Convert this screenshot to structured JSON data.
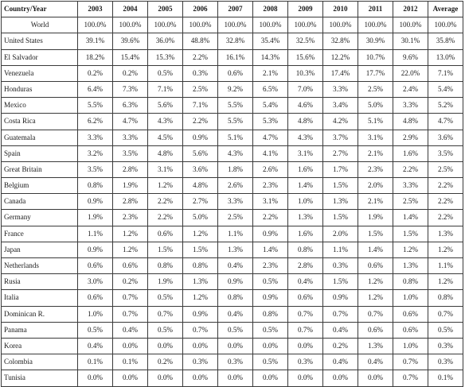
{
  "table": {
    "headers": [
      "Country/Year",
      "2003",
      "2004",
      "2005",
      "2006",
      "2007",
      "2008",
      "2009",
      "2010",
      "2011",
      "2012",
      "Average"
    ],
    "rows": [
      {
        "country": "World",
        "values": [
          "100.0%",
          "100.0%",
          "100.0%",
          "100.0%",
          "100.0%",
          "100.0%",
          "100.0%",
          "100.0%",
          "100.0%",
          "100.0%",
          "100.0%"
        ]
      },
      {
        "country": "United States",
        "values": [
          "39.1%",
          "39.6%",
          "36.0%",
          "48.8%",
          "32.8%",
          "35.4%",
          "32.5%",
          "32.8%",
          "30.9%",
          "30.1%",
          "35.8%"
        ]
      },
      {
        "country": "El Salvador",
        "values": [
          "18.2%",
          "15.4%",
          "15.3%",
          "2.2%",
          "16.1%",
          "14.3%",
          "15.6%",
          "12.2%",
          "10.7%",
          "9.6%",
          "13.0%"
        ]
      },
      {
        "country": "Venezuela",
        "values": [
          "0.2%",
          "0.2%",
          "0.5%",
          "0.3%",
          "0.6%",
          "2.1%",
          "10.3%",
          "17.4%",
          "17.7%",
          "22.0%",
          "7.1%"
        ]
      },
      {
        "country": "Honduras",
        "values": [
          "6.4%",
          "7.3%",
          "7.1%",
          "2.5%",
          "9.2%",
          "6.5%",
          "7.0%",
          "3.3%",
          "2.5%",
          "2.4%",
          "5.4%"
        ]
      },
      {
        "country": "Mexico",
        "values": [
          "5.5%",
          "6.3%",
          "5.6%",
          "7.1%",
          "5.5%",
          "5.4%",
          "4.6%",
          "3.4%",
          "5.0%",
          "3.3%",
          "5.2%"
        ]
      },
      {
        "country": "Costa Rica",
        "values": [
          "6.2%",
          "4.7%",
          "4.3%",
          "2.2%",
          "5.5%",
          "5.3%",
          "4.8%",
          "4.2%",
          "5.1%",
          "4.8%",
          "4.7%"
        ]
      },
      {
        "country": "Guatemala",
        "values": [
          "3.3%",
          "3.3%",
          "4.5%",
          "0.9%",
          "5.1%",
          "4.7%",
          "4.3%",
          "3.7%",
          "3.1%",
          "2.9%",
          "3.6%"
        ]
      },
      {
        "country": "Spain",
        "values": [
          "3.2%",
          "3.5%",
          "4.8%",
          "5.6%",
          "4.3%",
          "4.1%",
          "3.1%",
          "2.7%",
          "2.1%",
          "1.6%",
          "3.5%"
        ]
      },
      {
        "country": "Great Britain",
        "values": [
          "3.5%",
          "2.8%",
          "3.1%",
          "3.6%",
          "1.8%",
          "2.6%",
          "1.6%",
          "1.7%",
          "2.3%",
          "2.2%",
          "2.5%"
        ]
      },
      {
        "country": "Belgium",
        "values": [
          "0.8%",
          "1.9%",
          "1.2%",
          "4.8%",
          "2.6%",
          "2.3%",
          "1.4%",
          "1.5%",
          "2.0%",
          "3.3%",
          "2.2%"
        ]
      },
      {
        "country": "Canada",
        "values": [
          "0.9%",
          "2.8%",
          "2.2%",
          "2.7%",
          "3.3%",
          "3.1%",
          "1.0%",
          "1.3%",
          "2.1%",
          "2.5%",
          "2.2%"
        ]
      },
      {
        "country": "Germany",
        "values": [
          "1.9%",
          "2.3%",
          "2.2%",
          "5.0%",
          "2.5%",
          "2.2%",
          "1.3%",
          "1.5%",
          "1.9%",
          "1.4%",
          "2.2%"
        ]
      },
      {
        "country": "France",
        "values": [
          "1.1%",
          "1.2%",
          "0.6%",
          "1.2%",
          "1.1%",
          "0.9%",
          "1.6%",
          "2.0%",
          "1.5%",
          "1.5%",
          "1.3%"
        ]
      },
      {
        "country": "Japan",
        "values": [
          "0.9%",
          "1.2%",
          "1.5%",
          "1.5%",
          "1.3%",
          "1.4%",
          "0.8%",
          "1.1%",
          "1.4%",
          "1.2%",
          "1.2%"
        ]
      },
      {
        "country": "Netherlands",
        "values": [
          "0.6%",
          "0.6%",
          "0.8%",
          "0.8%",
          "0.4%",
          "2.3%",
          "2.8%",
          "0.3%",
          "0.6%",
          "1.3%",
          "1.1%"
        ]
      },
      {
        "country": "Rusia",
        "values": [
          "3.0%",
          "0.2%",
          "1.9%",
          "1.3%",
          "0.9%",
          "0.5%",
          "0.4%",
          "1.5%",
          "1.2%",
          "0.8%",
          "1.2%"
        ]
      },
      {
        "country": "Italia",
        "values": [
          "0.6%",
          "0.7%",
          "0.5%",
          "1.2%",
          "0.8%",
          "0.9%",
          "0.6%",
          "0.9%",
          "1.2%",
          "1.0%",
          "0.8%"
        ]
      },
      {
        "country": "Dominican R.",
        "values": [
          "1.0%",
          "0.7%",
          "0.7%",
          "0.9%",
          "0.4%",
          "0.8%",
          "0.7%",
          "0.7%",
          "0.7%",
          "0.6%",
          "0.7%"
        ]
      },
      {
        "country": "Panama",
        "values": [
          "0.5%",
          "0.4%",
          "0.5%",
          "0.7%",
          "0.5%",
          "0.5%",
          "0.7%",
          "0.4%",
          "0.6%",
          "0.6%",
          "0.5%"
        ]
      },
      {
        "country": "Korea",
        "values": [
          "0.4%",
          "0.0%",
          "0.0%",
          "0.0%",
          "0.0%",
          "0.0%",
          "0.0%",
          "0.2%",
          "1.3%",
          "1.0%",
          "0.3%"
        ]
      },
      {
        "country": "Colombia",
        "values": [
          "0.1%",
          "0.1%",
          "0.2%",
          "0.3%",
          "0.3%",
          "0.5%",
          "0.3%",
          "0.4%",
          "0.4%",
          "0.7%",
          "0.3%"
        ]
      },
      {
        "country": "Tunisia",
        "values": [
          "0.0%",
          "0.0%",
          "0.0%",
          "0.0%",
          "0.0%",
          "0.0%",
          "0.0%",
          "0.0%",
          "0.0%",
          "0.7%",
          "0.1%"
        ]
      }
    ]
  }
}
